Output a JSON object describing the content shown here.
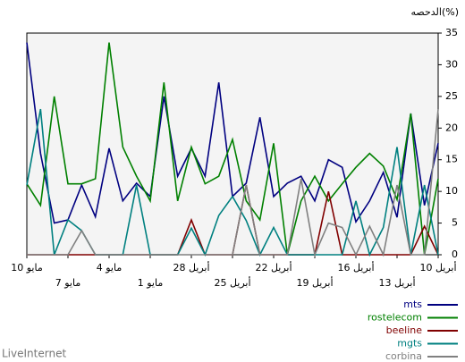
{
  "chart_data": {
    "type": "line",
    "title": "الدحصه(%)",
    "footer": "LiveInternet",
    "categories": [
      "10 مايو",
      null,
      null,
      "7 مايو",
      null,
      null,
      "4 مايو",
      null,
      null,
      "1 مايو",
      null,
      null,
      "28 أبريل",
      null,
      null,
      "25 أبريل",
      null,
      null,
      "22 أبريل",
      null,
      null,
      "19 أبريل",
      null,
      null,
      "16 أبريل",
      null,
      null,
      "13 أبريل",
      null,
      null,
      "10 أبريل"
    ],
    "series": [
      {
        "name": "mts",
        "color": "#000080",
        "values": [
          33.5,
          16,
          5,
          5.5,
          11,
          6,
          16.8,
          8.5,
          11.3,
          9.2,
          25,
          12.4,
          16.8,
          12.4,
          27.2,
          9.2,
          11.3,
          21.7,
          9.2,
          11.3,
          12.4,
          8.5,
          15,
          13.8,
          5.2,
          8.5,
          13,
          5.9,
          22.3,
          7.8,
          17.6
        ]
      },
      {
        "name": "rostelecom",
        "color": "#008000",
        "values": [
          11.2,
          7.8,
          25,
          11.2,
          11.2,
          12,
          33.5,
          17,
          12.4,
          8.5,
          27.2,
          8.5,
          17,
          11.2,
          12.4,
          18.2,
          8.5,
          5.5,
          17.6,
          0,
          8.5,
          12.4,
          8.5,
          11.2,
          13.8,
          16,
          14,
          8.7,
          22.3,
          0,
          12
        ]
      },
      {
        "name": "beeline",
        "color": "#800000",
        "values": [
          0,
          0,
          0,
          0,
          0,
          0,
          0,
          0,
          0,
          0,
          0,
          0,
          5.5,
          0,
          0,
          0,
          11,
          0,
          0,
          0,
          0,
          0,
          10,
          0,
          0,
          0,
          0,
          0,
          0,
          4.5,
          0
        ]
      },
      {
        "name": "mgts",
        "color": "#008080",
        "values": [
          11,
          23,
          0,
          5.5,
          3.8,
          0,
          0,
          0,
          11,
          0,
          0,
          0,
          4.2,
          0,
          6.2,
          9.2,
          5.4,
          0,
          4.3,
          0,
          0,
          0,
          0,
          0,
          8.5,
          0,
          4.3,
          17,
          0,
          11,
          0
        ]
      },
      {
        "name": "corbina",
        "color": "#808080",
        "values": [
          0,
          0,
          0,
          0,
          3.8,
          0,
          0,
          0,
          0,
          0,
          0,
          0,
          0,
          0,
          0,
          0,
          11,
          0,
          0,
          0,
          12,
          0,
          5,
          4.3,
          0,
          4.5,
          0,
          11,
          0,
          0,
          23
        ]
      }
    ],
    "ylim": [
      0,
      35
    ],
    "yticks": [
      0,
      5,
      10,
      15,
      20,
      25,
      30,
      35
    ]
  }
}
